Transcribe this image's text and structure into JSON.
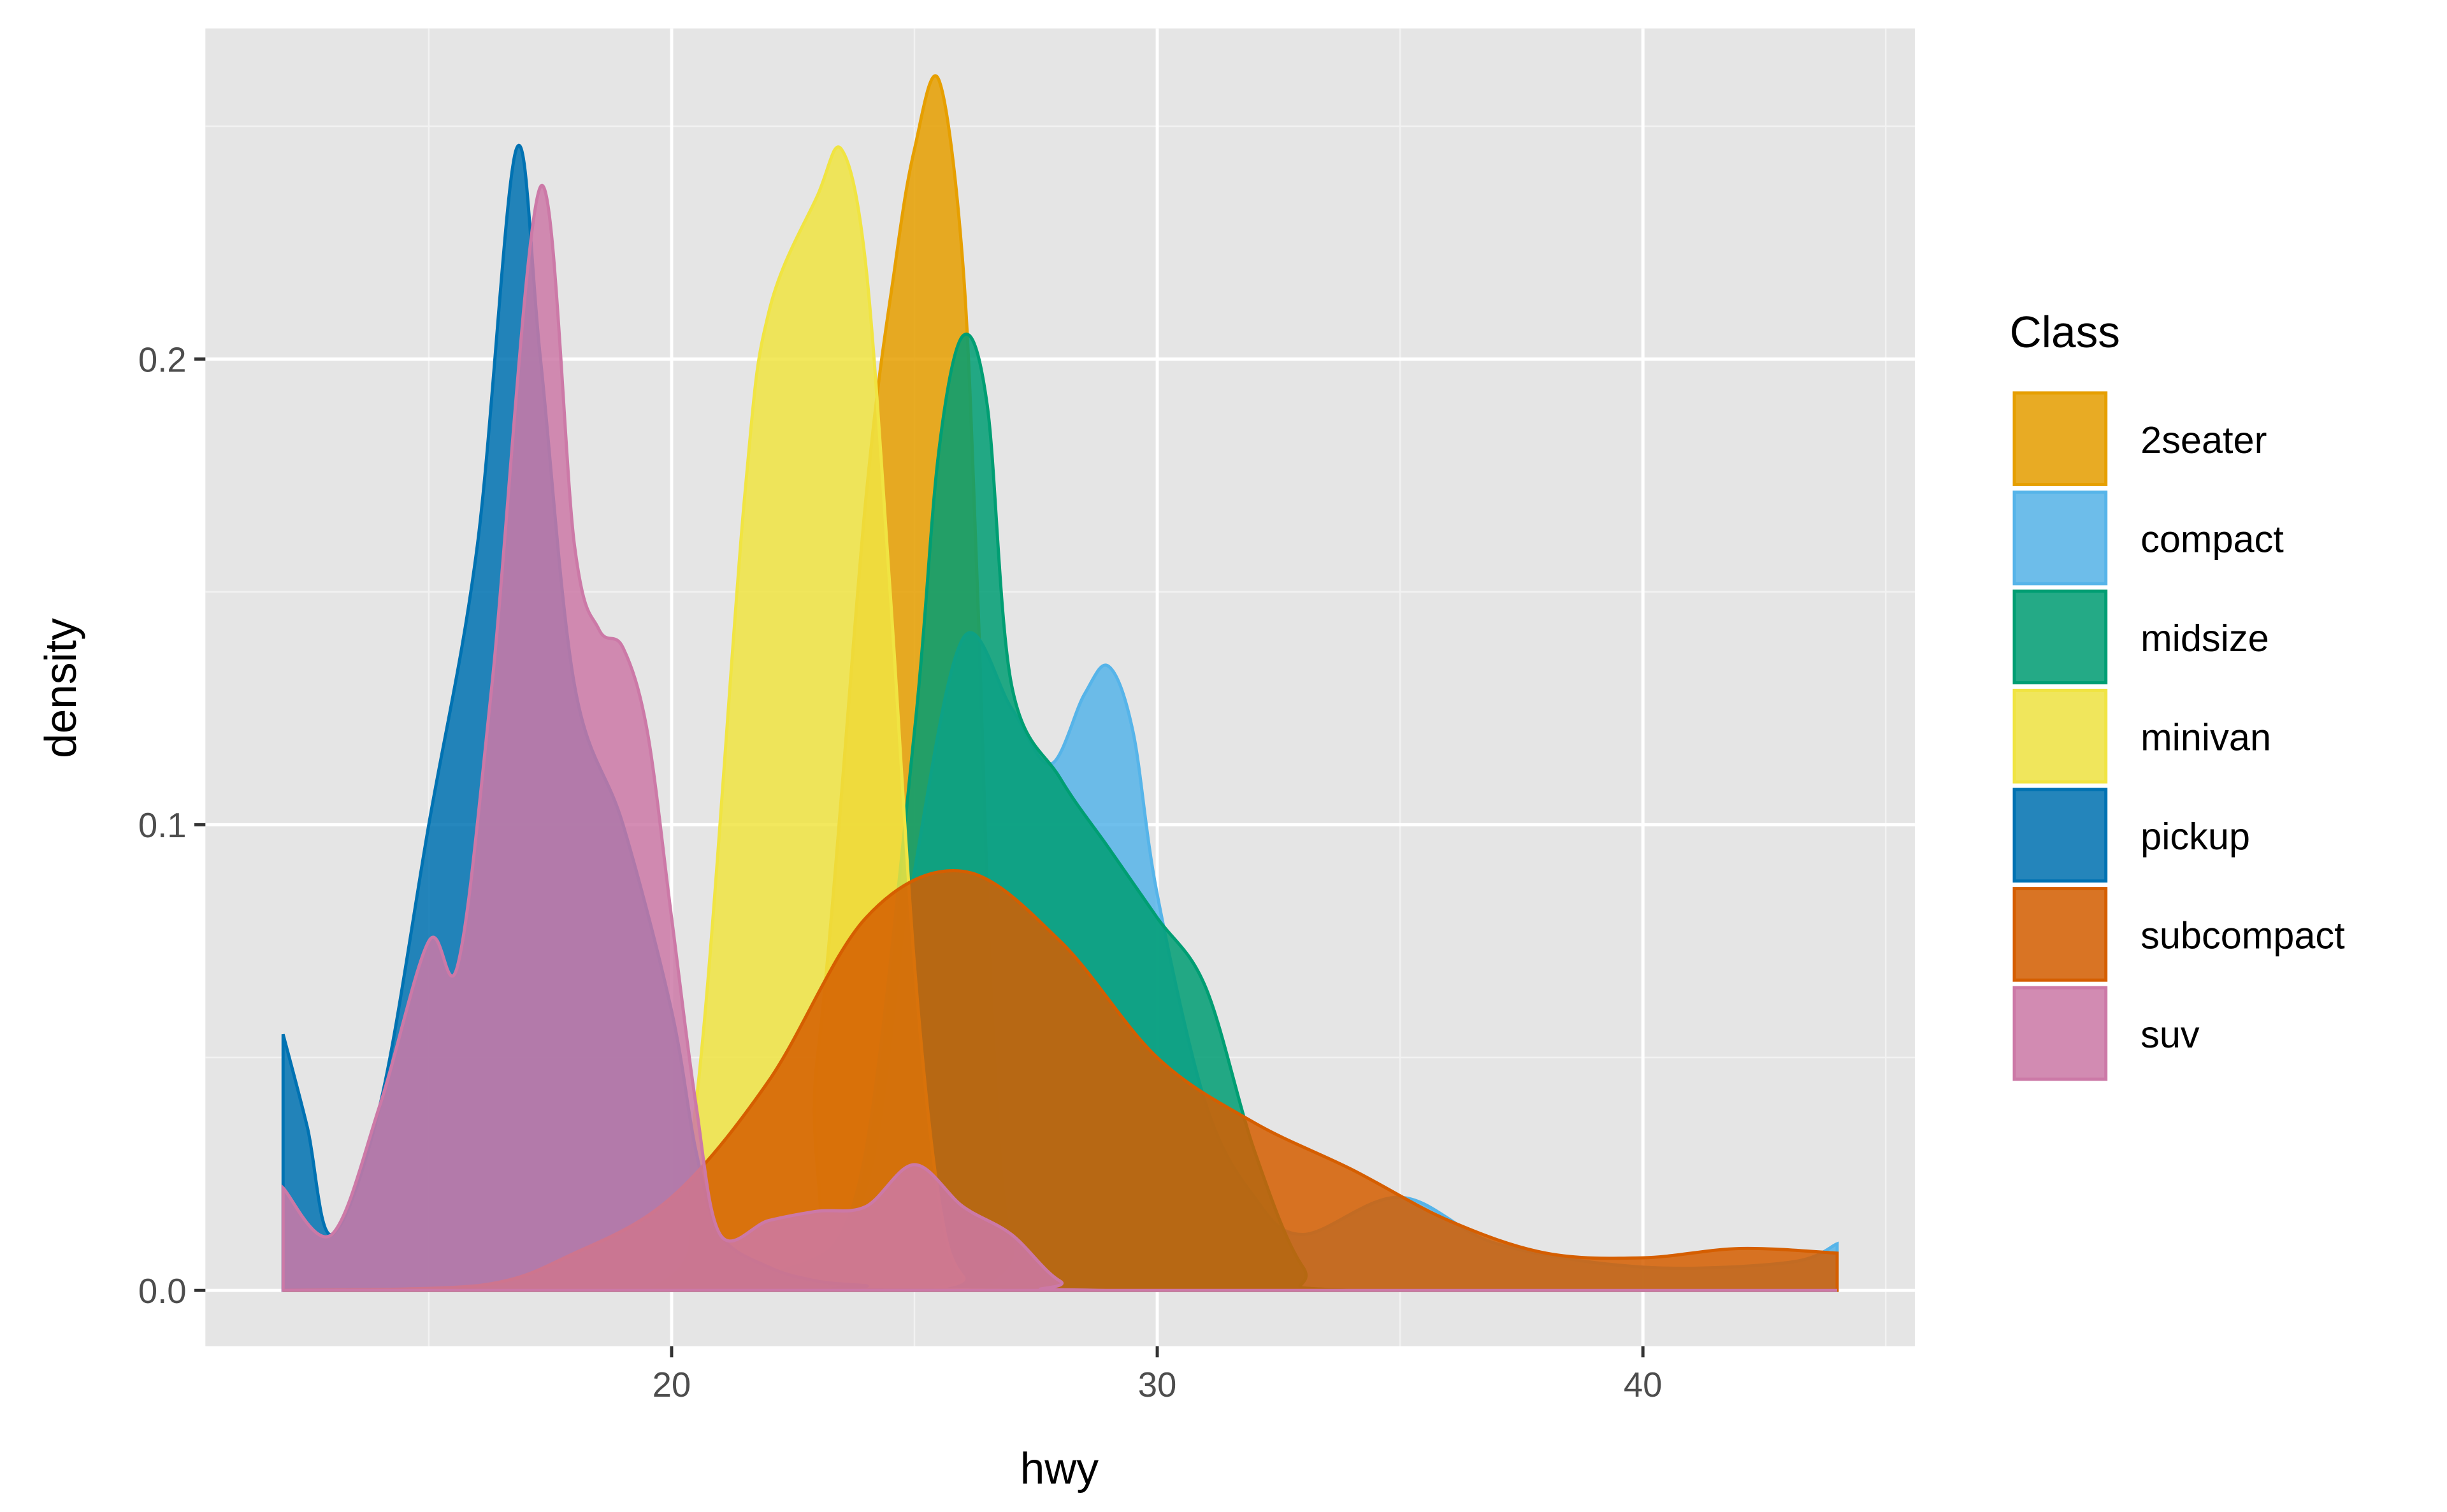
{
  "chart_data": {
    "type": "area",
    "subtype": "density",
    "title": "",
    "xlabel": "hwy",
    "ylabel": "density",
    "xlim": [
      10.4,
      45.6
    ],
    "ylim": [
      -0.012,
      0.271
    ],
    "x_ticks": [
      20,
      30,
      40
    ],
    "x_tick_labels": [
      "20",
      "30",
      "40"
    ],
    "y_ticks": [
      0.0,
      0.1,
      0.2
    ],
    "y_tick_labels": [
      "0.0",
      "0.1",
      "0.2"
    ],
    "grid": true,
    "legend": {
      "title": "Class",
      "position": "right"
    },
    "alpha": 0.85,
    "series": [
      {
        "name": "2seater",
        "color": "#E69F00",
        "x": [
          12,
          22,
          23,
          24,
          24.6,
          25,
          25.5,
          26,
          26.3,
          26.6,
          27,
          28,
          44
        ],
        "y": [
          0,
          0,
          0.05,
          0.17,
          0.22,
          0.245,
          0.26,
          0.22,
          0.15,
          0.06,
          0.01,
          0,
          0
        ]
      },
      {
        "name": "compact",
        "color": "#56B4E9",
        "x": [
          12,
          20,
          22,
          24,
          25,
          26,
          27,
          27.8,
          28.5,
          29,
          29.5,
          30,
          31,
          32,
          33,
          35,
          37,
          40,
          43,
          44
        ],
        "y": [
          0,
          0,
          0.003,
          0.02,
          0.09,
          0.14,
          0.125,
          0.113,
          0.128,
          0.134,
          0.12,
          0.085,
          0.04,
          0.02,
          0.012,
          0.02,
          0.01,
          0.005,
          0.006,
          0.01
        ]
      },
      {
        "name": "midsize",
        "color": "#009E73",
        "x": [
          12,
          22,
          23,
          24,
          25,
          25.5,
          26,
          26.5,
          27,
          28,
          29,
          30,
          31,
          32,
          33,
          34,
          44
        ],
        "y": [
          0,
          0,
          0.005,
          0.03,
          0.12,
          0.18,
          0.205,
          0.19,
          0.13,
          0.11,
          0.095,
          0.08,
          0.065,
          0.03,
          0.005,
          0,
          0
        ]
      },
      {
        "name": "minivan",
        "color": "#F0E442",
        "x": [
          12,
          19.5,
          20.5,
          21.5,
          22,
          23,
          23.5,
          24,
          24.5,
          25,
          25.5,
          26,
          27,
          44
        ],
        "y": [
          0,
          0,
          0.04,
          0.17,
          0.21,
          0.235,
          0.245,
          0.22,
          0.15,
          0.07,
          0.02,
          0.003,
          0,
          0
        ]
      },
      {
        "name": "pickup",
        "color": "#0072B2",
        "x": [
          12,
          12.5,
          13,
          14,
          15,
          16,
          16.8,
          17.3,
          18,
          19,
          20,
          20.5,
          21,
          22,
          23,
          24,
          25,
          44
        ],
        "y": [
          0.055,
          0.035,
          0.012,
          0.04,
          0.1,
          0.16,
          0.245,
          0.2,
          0.13,
          0.1,
          0.06,
          0.03,
          0.012,
          0.005,
          0.002,
          0.001,
          0,
          0
        ]
      },
      {
        "name": "subcompact",
        "color": "#D55E00",
        "x": [
          12,
          16,
          18,
          20,
          22,
          24,
          26,
          28,
          30,
          32,
          34,
          36,
          38,
          40,
          42,
          44
        ],
        "y": [
          0,
          0.001,
          0.008,
          0.02,
          0.045,
          0.08,
          0.09,
          0.075,
          0.05,
          0.036,
          0.026,
          0.015,
          0.008,
          0.007,
          0.009,
          0.008
        ]
      },
      {
        "name": "suv",
        "color": "#CC79A7",
        "x": [
          12,
          13,
          14,
          15,
          15.6,
          16.3,
          17.3,
          18,
          18.5,
          19,
          19.5,
          20,
          20.5,
          21,
          22,
          23,
          24,
          25,
          26,
          27,
          28,
          29,
          44
        ],
        "y": [
          0.022,
          0.012,
          0.04,
          0.075,
          0.07,
          0.13,
          0.237,
          0.16,
          0.142,
          0.138,
          0.12,
          0.08,
          0.04,
          0.012,
          0.015,
          0.017,
          0.018,
          0.027,
          0.018,
          0.012,
          0.002,
          0,
          0
        ]
      }
    ]
  }
}
